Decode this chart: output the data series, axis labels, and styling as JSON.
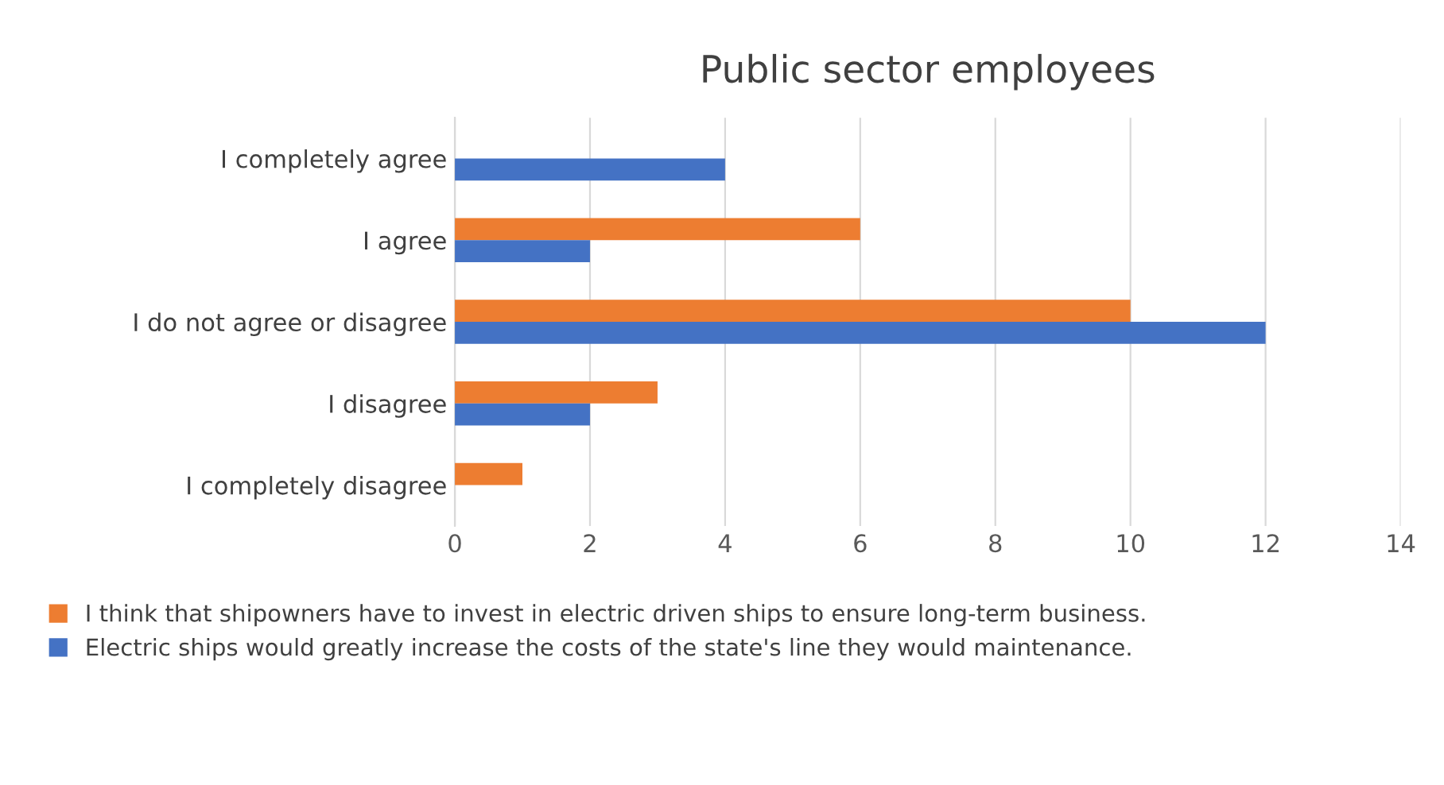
{
  "chart_data": {
    "type": "bar",
    "orientation": "horizontal",
    "title": "Public sector employees",
    "categories": [
      "I completely agree",
      "I agree",
      "I do not agree or disagree",
      "I disagree",
      "I completely disagree"
    ],
    "series": [
      {
        "name": "I think that shipowners have to invest in electric driven ships to ensure long-term business.",
        "color": "#ed7d31",
        "values": [
          null,
          6,
          10,
          3,
          1
        ]
      },
      {
        "name": "Electric ships would greatly increase the costs of the state's line they would maintenance.",
        "color": "#4472c4",
        "values": [
          4,
          2,
          12,
          2,
          null
        ]
      }
    ],
    "xlim": [
      0,
      14
    ],
    "xticks": [
      0,
      2,
      4,
      6,
      8,
      10,
      12,
      14
    ],
    "grid": "x",
    "legend": "bottom"
  }
}
